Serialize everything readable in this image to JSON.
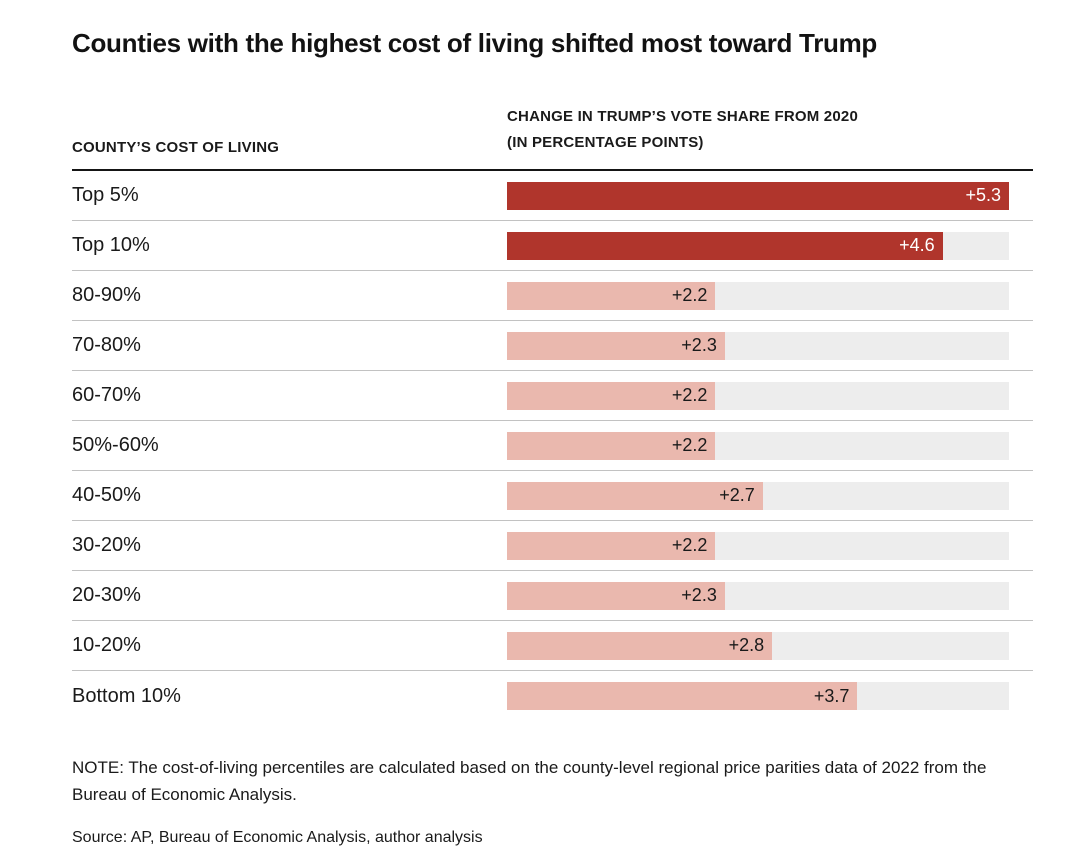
{
  "chart_data": {
    "type": "bar",
    "orientation": "horizontal",
    "title": "Counties with the highest cost of living shifted most toward Trump",
    "col_headers": {
      "left": "COUNTY’S COST OF LIVING",
      "right": [
        "CHANGE IN TRUMP’S VOTE SHARE FROM 2020",
        "(IN PERCENTAGE POINTS)"
      ]
    },
    "categories": [
      "Top 5%",
      "Top 10%",
      "80-90%",
      "70-80%",
      "60-70%",
      "50%-60%",
      "40-50%",
      "30-20%",
      "20-30%",
      "10-20%",
      "Bottom 10%"
    ],
    "values": [
      5.3,
      4.6,
      2.2,
      2.3,
      2.2,
      2.2,
      2.7,
      2.2,
      2.3,
      2.8,
      3.7
    ],
    "value_labels": [
      "+5.3",
      "+4.6",
      "+2.2",
      "+2.3",
      "+2.2",
      "+2.2",
      "+2.7",
      "+2.2",
      "+2.3",
      "+2.8",
      "+3.7"
    ],
    "xlim": [
      0,
      5.3
    ],
    "highlighted_rows": [
      0,
      1
    ],
    "grid": false,
    "legend": false,
    "colors": {
      "bar_highlight": "#b0352c",
      "bar_default": "#eab8ae",
      "bar_track": "#ededed",
      "value_on_highlight": "#ffffff",
      "value_on_default": "#1a1a1a"
    }
  },
  "note": "NOTE: The cost-of-living percentiles are calculated based on the county-level regional price parities data of 2022 from the Bureau of Economic Analysis.",
  "source": "Source: AP, Bureau of Economic Analysis, author analysis"
}
